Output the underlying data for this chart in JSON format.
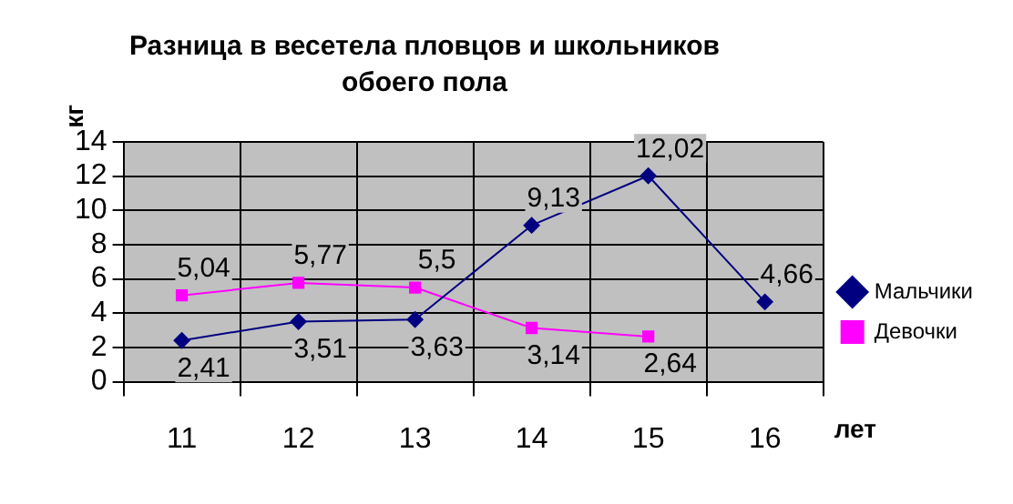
{
  "chart_data": {
    "type": "line",
    "title": "Разница в весетела пловцов и школьников обоего пола",
    "xlabel": "лет",
    "ylabel": "кг",
    "categories": [
      "11",
      "12",
      "13",
      "14",
      "15",
      "16"
    ],
    "series": [
      {
        "name": "Мальчики",
        "color": "#000080",
        "marker": "diamond",
        "values": [
          2.41,
          3.51,
          3.63,
          9.13,
          12.02,
          4.66
        ],
        "value_labels": [
          "2,41",
          "3,51",
          "3,63",
          "9,13",
          "12,02",
          "4,66"
        ]
      },
      {
        "name": "Девочки",
        "color": "#ff00ff",
        "marker": "square",
        "values": [
          5.04,
          5.77,
          5.5,
          3.14,
          2.64,
          null
        ],
        "value_labels": [
          "5,04",
          "5,77",
          "5,5",
          "3,14",
          "2,64",
          null
        ]
      }
    ],
    "ylim": [
      0,
      14
    ],
    "yticks": [
      0,
      2,
      4,
      6,
      8,
      10,
      12,
      14
    ],
    "grid": true,
    "legend": "right"
  }
}
